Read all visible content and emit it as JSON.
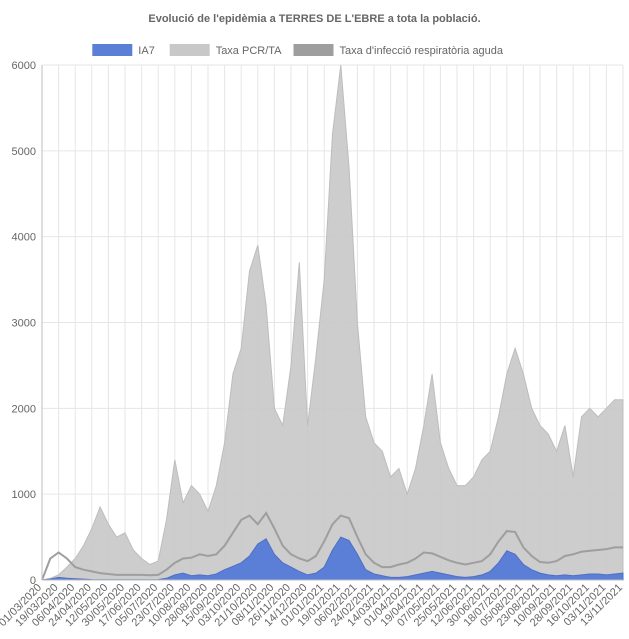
{
  "chart_data": {
    "type": "area",
    "title": "Evolució de l'epidèmia a TERRES DE L'EBRE a tota la població.",
    "xlabel": "",
    "ylabel": "",
    "ylim": [
      0,
      6000
    ],
    "yticks": [
      0,
      1000,
      2000,
      3000,
      4000,
      5000,
      6000
    ],
    "grid": true,
    "legend_position": "top",
    "x_tick_labels": [
      "01/03/2020",
      "19/03/2020",
      "06/04/2020",
      "24/04/2020",
      "12/05/2020",
      "30/05/2020",
      "17/06/2020",
      "05/07/2020",
      "23/07/2020",
      "10/08/2020",
      "28/08/2020",
      "15/09/2020",
      "03/10/2020",
      "21/10/2020",
      "08/11/2020",
      "26/11/2020",
      "14/12/2020",
      "01/01/2021",
      "19/01/2021",
      "06/02/2021",
      "24/02/2021",
      "14/03/2021",
      "01/04/2021",
      "19/04/2021",
      "07/05/2021",
      "25/05/2021",
      "12/06/2021",
      "30/06/2021",
      "18/07/2021",
      "05/08/2021",
      "23/08/2021",
      "10/09/2021",
      "28/09/2021",
      "16/10/2021",
      "03/11/2021",
      "13/11/2021"
    ],
    "x": [
      "2020-03-01",
      "2020-03-10",
      "2020-03-19",
      "2020-03-28",
      "2020-04-06",
      "2020-04-15",
      "2020-04-24",
      "2020-05-03",
      "2020-05-12",
      "2020-05-21",
      "2020-05-30",
      "2020-06-08",
      "2020-06-17",
      "2020-06-26",
      "2020-07-05",
      "2020-07-14",
      "2020-07-23",
      "2020-08-01",
      "2020-08-10",
      "2020-08-19",
      "2020-08-28",
      "2020-09-06",
      "2020-09-15",
      "2020-09-24",
      "2020-10-03",
      "2020-10-12",
      "2020-10-21",
      "2020-10-30",
      "2020-11-08",
      "2020-11-17",
      "2020-11-26",
      "2020-12-05",
      "2020-12-14",
      "2020-12-23",
      "2021-01-01",
      "2021-01-10",
      "2021-01-19",
      "2021-01-28",
      "2021-02-06",
      "2021-02-15",
      "2021-02-24",
      "2021-03-05",
      "2021-03-14",
      "2021-03-23",
      "2021-04-01",
      "2021-04-10",
      "2021-04-19",
      "2021-04-28",
      "2021-05-07",
      "2021-05-16",
      "2021-05-25",
      "2021-06-03",
      "2021-06-12",
      "2021-06-21",
      "2021-06-30",
      "2021-07-09",
      "2021-07-18",
      "2021-07-27",
      "2021-08-05",
      "2021-08-14",
      "2021-08-23",
      "2021-09-01",
      "2021-09-10",
      "2021-09-19",
      "2021-09-28",
      "2021-10-07",
      "2021-10-16",
      "2021-10-25",
      "2021-11-03",
      "2021-11-13",
      "2021-11-22"
    ],
    "series": [
      {
        "name": "IA7",
        "color": "#5b7fd6",
        "values": [
          0,
          10,
          30,
          20,
          15,
          10,
          5,
          3,
          2,
          2,
          2,
          2,
          2,
          3,
          5,
          20,
          60,
          80,
          50,
          60,
          50,
          70,
          120,
          160,
          200,
          280,
          420,
          480,
          300,
          200,
          150,
          100,
          60,
          80,
          150,
          350,
          500,
          460,
          300,
          120,
          70,
          50,
          30,
          30,
          40,
          60,
          80,
          100,
          80,
          60,
          40,
          30,
          40,
          60,
          100,
          200,
          340,
          300,
          180,
          120,
          80,
          60,
          50,
          60,
          50,
          60,
          70,
          70,
          60,
          70,
          80
        ]
      },
      {
        "name": "Taxa PCR/TA",
        "color": "#c8c8c8",
        "values": [
          0,
          20,
          60,
          150,
          250,
          400,
          600,
          850,
          650,
          500,
          550,
          350,
          250,
          180,
          220,
          700,
          1400,
          900,
          1100,
          1000,
          800,
          1100,
          1600,
          2400,
          2700,
          3600,
          3900,
          3200,
          2000,
          1800,
          2500,
          3700,
          1800,
          2600,
          3500,
          5200,
          6000,
          4800,
          3000,
          1900,
          1600,
          1500,
          1200,
          1300,
          1000,
          1300,
          1800,
          2400,
          1600,
          1300,
          1100,
          1100,
          1200,
          1400,
          1500,
          1900,
          2400,
          2700,
          2400,
          2000,
          1800,
          1700,
          1500,
          1800,
          1200,
          1900,
          2000,
          1900,
          2000,
          2100,
          2100
        ]
      },
      {
        "name": "Taxa d'infecció respiratòria aguda",
        "color": "#9e9e9e",
        "values": [
          0,
          250,
          320,
          250,
          150,
          120,
          100,
          80,
          70,
          60,
          60,
          60,
          60,
          55,
          60,
          120,
          200,
          250,
          260,
          300,
          280,
          300,
          400,
          550,
          700,
          750,
          650,
          780,
          600,
          400,
          300,
          250,
          220,
          280,
          450,
          650,
          750,
          720,
          500,
          300,
          200,
          150,
          150,
          180,
          200,
          250,
          320,
          310,
          270,
          230,
          200,
          180,
          200,
          220,
          300,
          450,
          570,
          560,
          380,
          280,
          210,
          200,
          220,
          280,
          300,
          330,
          340,
          350,
          360,
          380,
          380
        ]
      }
    ]
  }
}
